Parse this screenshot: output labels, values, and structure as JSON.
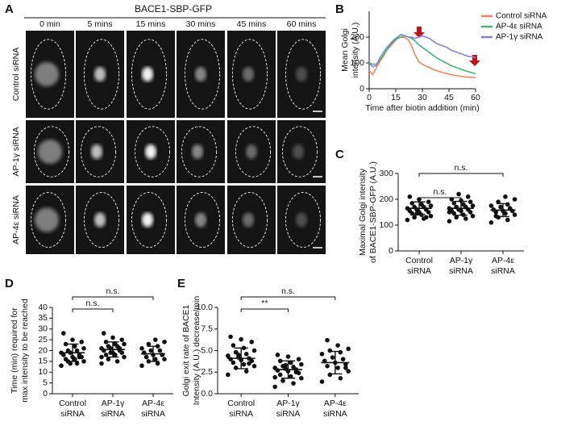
{
  "figure": {
    "panel_labels": [
      "A",
      "B",
      "C",
      "D",
      "E"
    ],
    "micrograph": {
      "title": "BACE1-SBP-GFP",
      "timepoints": [
        "0 min",
        "5 mins",
        "15 mins",
        "30 mins",
        "45 mins",
        "60 mins"
      ],
      "conditions": [
        "Control siRNA",
        "AP-1γ siRNA",
        "AP-4ε siRNA"
      ]
    }
  },
  "chart_data": [
    {
      "type": "line",
      "xlabel": "Time after biotin addition (min)",
      "ylabel": [
        "Mean Golgi",
        "intensity (A.U.)"
      ],
      "x": [
        0,
        2,
        4,
        6,
        8,
        10,
        12,
        14,
        16,
        18,
        20,
        22,
        24,
        26,
        28,
        30,
        32,
        34,
        36,
        38,
        40,
        42,
        44,
        46,
        48,
        50,
        52,
        54,
        56,
        58,
        60
      ],
      "xlim": [
        0,
        60
      ],
      "xticks": [
        0,
        15,
        30,
        45,
        60
      ],
      "ylim": [
        0,
        300
      ],
      "yticks": [
        0,
        100,
        200
      ],
      "legend": "top-right",
      "series": [
        {
          "name": "Control siRNA",
          "color": "#f4845f",
          "values": [
            70,
            55,
            80,
            105,
            125,
            150,
            165,
            180,
            195,
            200,
            198,
            190,
            165,
            130,
            105,
            95,
            88,
            82,
            75,
            70,
            66,
            62,
            58,
            55,
            52,
            50,
            48,
            46,
            45,
            44,
            43
          ]
        },
        {
          "name": "AP-4ε siRNA",
          "color": "#3cb878",
          "values": [
            100,
            95,
            95,
            110,
            130,
            150,
            170,
            185,
            195,
            200,
            205,
            200,
            195,
            185,
            170,
            160,
            150,
            140,
            130,
            120,
            112,
            105,
            98,
            90,
            85,
            80,
            75,
            70,
            66,
            62,
            58
          ]
        },
        {
          "name": "AP-1γ siRNA",
          "color": "#8b7fd6",
          "values": [
            100,
            85,
            90,
            120,
            140,
            160,
            175,
            190,
            200,
            210,
            205,
            200,
            200,
            195,
            200,
            205,
            200,
            195,
            185,
            175,
            170,
            165,
            160,
            150,
            145,
            140,
            135,
            130,
            125,
            125,
            120
          ]
        }
      ]
    },
    {
      "type": "strip",
      "ylabel": [
        "Maximal Golgi intensity",
        "of BACE1-SBP-GFP (A.U.)"
      ],
      "categories": [
        [
          "Control",
          "siRNA"
        ],
        [
          "AP-1γ",
          "siRNA"
        ],
        [
          "AP-4ε",
          "siRNA"
        ]
      ],
      "ylim": [
        0,
        300
      ],
      "yticks": [
        0,
        100,
        200,
        300
      ],
      "color": "#111111",
      "values": [
        [
          120,
          125,
          130,
          135,
          140,
          145,
          150,
          150,
          155,
          160,
          160,
          165,
          170,
          170,
          175,
          180,
          185,
          190,
          200,
          210,
          130,
          145
        ],
        [
          115,
          125,
          130,
          135,
          140,
          145,
          150,
          155,
          155,
          160,
          160,
          165,
          170,
          170,
          175,
          180,
          185,
          190,
          195,
          200,
          210,
          220,
          150
        ],
        [
          110,
          120,
          130,
          140,
          145,
          150,
          155,
          155,
          160,
          165,
          170,
          175,
          180,
          190,
          200,
          210,
          135
        ]
      ],
      "means": [
        165,
        165,
        158
      ],
      "errors": [
        25,
        27,
        25
      ],
      "annotations": [
        {
          "text": "n.s.",
          "between": [
            0,
            1
          ]
        },
        {
          "text": "n.s.",
          "between": [
            0,
            2
          ]
        }
      ]
    },
    {
      "type": "strip",
      "ylabel": [
        "Time (min) required for",
        "max intensity to be reached"
      ],
      "categories": [
        [
          "Control",
          "siRNA"
        ],
        [
          "AP-1γ",
          "siRNA"
        ],
        [
          "AP-4ε",
          "siRNA"
        ]
      ],
      "ylim": [
        0,
        40
      ],
      "yticks": [
        0,
        5,
        10,
        15,
        20,
        25,
        30,
        35,
        40
      ],
      "color": "#111111",
      "values": [
        [
          13,
          14,
          15,
          15,
          16,
          16,
          17,
          17,
          18,
          18,
          19,
          19,
          20,
          20,
          21,
          22,
          23,
          24,
          25,
          28,
          17,
          14
        ],
        [
          14,
          15,
          16,
          17,
          18,
          18,
          19,
          19,
          20,
          20,
          21,
          21,
          22,
          22,
          23,
          23,
          24,
          25,
          26,
          28,
          21,
          19,
          17
        ],
        [
          13,
          14,
          15,
          16,
          16,
          17,
          18,
          18,
          19,
          20,
          20,
          21,
          22,
          23,
          24,
          25,
          17
        ]
      ],
      "means": [
        19,
        20.5,
        18.5
      ],
      "errors": [
        4,
        3.5,
        3.5
      ],
      "annotations": [
        {
          "text": "n.s.",
          "between": [
            0,
            1
          ]
        },
        {
          "text": "n.s.",
          "between": [
            0,
            2
          ]
        }
      ]
    },
    {
      "type": "strip",
      "ylabel": [
        "Golgi exit rate of BACE1",
        "Intensity (A.U.) decrease/min"
      ],
      "categories": [
        [
          "Control",
          "siRNA"
        ],
        [
          "AP-1γ",
          "siRNA"
        ],
        [
          "AP-4ε",
          "siRNA"
        ]
      ],
      "ylim": [
        0,
        10
      ],
      "yticks": [
        {
          "value": 0,
          "label": "0.0"
        },
        {
          "value": 2.5,
          "label": "2.5"
        },
        {
          "value": 5,
          "label": "5.0"
        },
        {
          "value": 7.5,
          "label": "7.5"
        },
        {
          "value": 10,
          "label": "10.0"
        }
      ],
      "color": "#111111",
      "values": [
        [
          2.2,
          2.6,
          3.0,
          3.2,
          3.4,
          3.6,
          3.8,
          3.9,
          4.0,
          4.1,
          4.2,
          4.4,
          4.6,
          4.8,
          5.0,
          5.3,
          5.6,
          6.0,
          6.3,
          6.6,
          3.5,
          4.5
        ],
        [
          0.8,
          1.2,
          1.5,
          1.8,
          2.0,
          2.2,
          2.4,
          2.6,
          2.7,
          2.8,
          2.9,
          3.0,
          3.1,
          3.2,
          3.4,
          3.6,
          3.8,
          4.0,
          4.3,
          4.5,
          2.5,
          3.3,
          1.9
        ],
        [
          1.4,
          1.8,
          2.2,
          2.6,
          3.0,
          3.2,
          3.4,
          3.6,
          3.8,
          4.0,
          4.2,
          4.6,
          4.8,
          5.0,
          5.2,
          5.6,
          6.2,
          3.0
        ]
      ],
      "means": [
        4.1,
        2.8,
        3.6
      ],
      "errors": [
        1.2,
        1.0,
        1.3
      ],
      "annotations": [
        {
          "text": "**",
          "between": [
            0,
            1
          ]
        },
        {
          "text": "n.s.",
          "between": [
            0,
            2
          ]
        }
      ]
    }
  ]
}
